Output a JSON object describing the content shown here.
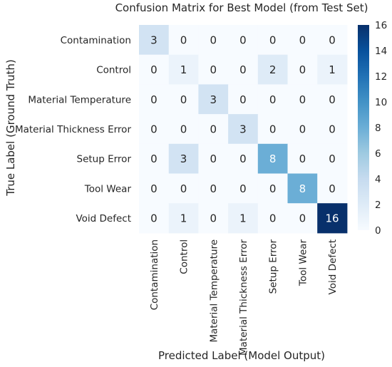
{
  "chart_data": {
    "type": "heatmap",
    "title": "Confusion Matrix for Best Model (from Test Set)",
    "xlabel": "Predicted Label (Model Output)",
    "ylabel": "True Label (Ground Truth)",
    "row_labels": [
      "Contamination",
      "Control",
      "Material Temperature",
      "Material Thickness Error",
      "Setup Error",
      "Tool Wear",
      "Void Defect"
    ],
    "col_labels": [
      "Contamination",
      "Control",
      "Material Temperature",
      "Material Thickness Error",
      "Setup Error",
      "Tool Wear",
      "Void Defect"
    ],
    "values": [
      [
        3,
        0,
        0,
        0,
        0,
        0,
        0
      ],
      [
        0,
        1,
        0,
        0,
        2,
        0,
        1
      ],
      [
        0,
        0,
        3,
        0,
        0,
        0,
        0
      ],
      [
        0,
        0,
        0,
        3,
        0,
        0,
        0
      ],
      [
        0,
        3,
        0,
        0,
        8,
        0,
        0
      ],
      [
        0,
        0,
        0,
        0,
        0,
        8,
        0
      ],
      [
        0,
        1,
        0,
        1,
        0,
        0,
        16
      ]
    ],
    "colorbar": {
      "min": 0,
      "max": 16,
      "ticks": [
        0,
        2,
        4,
        6,
        8,
        10,
        12,
        14,
        16
      ],
      "colormap": "Blues"
    },
    "colors": {
      "low": "#f7fbff",
      "high": "#08306b"
    }
  }
}
